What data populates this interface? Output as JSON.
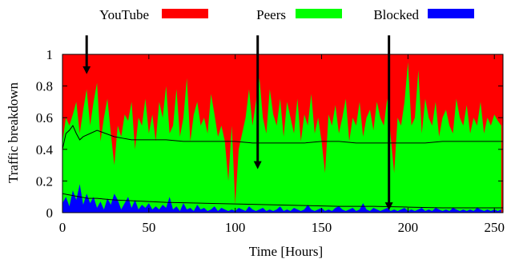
{
  "chart_data": {
    "type": "area",
    "stacked": true,
    "xlabel": "Time [Hours]",
    "ylabel": "Traffic breakdown",
    "xlim": [
      0,
      255
    ],
    "ylim": [
      0,
      1
    ],
    "x_ticks": [
      0,
      50,
      100,
      150,
      200,
      250
    ],
    "x_tick_labels": [
      "0",
      "50",
      "100",
      "150",
      "200",
      "250"
    ],
    "y_ticks": [
      0,
      0.2,
      0.4,
      0.6,
      0.8,
      1
    ],
    "y_tick_labels": [
      "0",
      "0.2",
      "0.4",
      "0.6",
      "0.8",
      "1"
    ],
    "grid": false,
    "legend_position": "top",
    "series": [
      {
        "name": "YouTube",
        "color": "#ff0000",
        "note": "remainder up to 1"
      },
      {
        "name": "Peers",
        "color": "#00ff00",
        "x": [
          0,
          2,
          4,
          6,
          8,
          10,
          12,
          14,
          16,
          18,
          20,
          22,
          24,
          26,
          28,
          30,
          32,
          34,
          36,
          38,
          40,
          42,
          44,
          46,
          48,
          50,
          52,
          54,
          56,
          58,
          60,
          62,
          64,
          66,
          68,
          70,
          72,
          74,
          76,
          78,
          80,
          82,
          84,
          86,
          88,
          90,
          92,
          94,
          96,
          98,
          100,
          102,
          104,
          106,
          108,
          110,
          112,
          114,
          116,
          118,
          120,
          122,
          124,
          126,
          128,
          130,
          132,
          134,
          136,
          138,
          140,
          142,
          144,
          146,
          148,
          150,
          152,
          154,
          156,
          158,
          160,
          162,
          164,
          166,
          168,
          170,
          172,
          174,
          176,
          178,
          180,
          182,
          184,
          186,
          188,
          190,
          192,
          194,
          196,
          198,
          200,
          202,
          204,
          206,
          208,
          210,
          212,
          214,
          216,
          218,
          220,
          222,
          224,
          226,
          228,
          230,
          232,
          234,
          236,
          238,
          240,
          242,
          244,
          246,
          248,
          250,
          252,
          254
        ],
        "values": [
          0.45,
          0.6,
          0.55,
          0.62,
          0.7,
          0.5,
          0.65,
          0.78,
          0.55,
          0.7,
          0.82,
          0.45,
          0.6,
          0.72,
          0.5,
          0.3,
          0.55,
          0.48,
          0.62,
          0.58,
          0.7,
          0.4,
          0.6,
          0.55,
          0.72,
          0.5,
          0.62,
          0.45,
          0.7,
          0.6,
          0.8,
          0.5,
          0.55,
          0.78,
          0.48,
          0.6,
          0.85,
          0.45,
          0.62,
          0.7,
          0.55,
          0.6,
          0.5,
          0.75,
          0.62,
          0.48,
          0.55,
          0.45,
          0.2,
          0.55,
          0.05,
          0.4,
          0.5,
          0.6,
          0.78,
          0.55,
          0.7,
          0.85,
          0.6,
          0.5,
          0.78,
          0.62,
          0.55,
          0.72,
          0.48,
          0.7,
          0.6,
          0.5,
          0.72,
          0.45,
          0.62,
          0.55,
          0.75,
          0.5,
          0.6,
          0.45,
          0.25,
          0.62,
          0.55,
          0.68,
          0.5,
          0.6,
          0.72,
          0.45,
          0.6,
          0.55,
          0.7,
          0.48,
          0.6,
          0.65,
          0.52,
          0.7,
          0.6,
          0.55,
          0.72,
          0.48,
          0.25,
          0.6,
          0.55,
          0.7,
          0.95,
          0.55,
          0.6,
          0.9,
          0.5,
          0.72,
          0.6,
          0.55,
          0.7,
          0.48,
          0.6,
          0.65,
          0.55,
          0.5,
          0.72,
          0.6,
          0.55,
          0.68,
          0.5,
          0.6,
          0.55,
          0.7,
          0.5,
          0.6,
          0.55,
          0.62,
          0.58,
          0.55
        ]
      },
      {
        "name": "Blocked",
        "color": "#0000ff",
        "x": [
          0,
          2,
          4,
          6,
          8,
          10,
          12,
          14,
          16,
          18,
          20,
          22,
          24,
          26,
          28,
          30,
          32,
          34,
          36,
          38,
          40,
          42,
          44,
          46,
          48,
          50,
          52,
          54,
          56,
          58,
          60,
          62,
          64,
          66,
          68,
          70,
          72,
          74,
          76,
          78,
          80,
          82,
          84,
          86,
          88,
          90,
          92,
          94,
          96,
          98,
          100,
          102,
          104,
          106,
          108,
          110,
          112,
          114,
          116,
          118,
          120,
          122,
          124,
          126,
          128,
          130,
          132,
          134,
          136,
          138,
          140,
          142,
          144,
          146,
          148,
          150,
          152,
          154,
          156,
          158,
          160,
          162,
          164,
          166,
          168,
          170,
          172,
          174,
          176,
          178,
          180,
          182,
          184,
          186,
          188,
          190,
          192,
          194,
          196,
          198,
          200,
          202,
          204,
          206,
          208,
          210,
          212,
          214,
          216,
          218,
          220,
          222,
          224,
          226,
          228,
          230,
          232,
          234,
          236,
          238,
          240,
          242,
          244,
          246,
          248,
          250,
          252,
          254
        ],
        "values": [
          0.06,
          0.1,
          0.04,
          0.14,
          0.08,
          0.18,
          0.05,
          0.12,
          0.06,
          0.1,
          0.03,
          0.07,
          0.02,
          0.09,
          0.05,
          0.12,
          0.08,
          0.02,
          0.06,
          0.1,
          0.03,
          0.08,
          0.02,
          0.05,
          0.03,
          0.06,
          0.02,
          0.04,
          0.02,
          0.05,
          0.03,
          0.1,
          0.02,
          0.04,
          0.01,
          0.06,
          0.02,
          0.03,
          0.01,
          0.05,
          0.02,
          0.03,
          0.01,
          0.02,
          0.04,
          0.01,
          0.03,
          0.02,
          0.01,
          0.02,
          0.01,
          0.03,
          0.02,
          0.01,
          0.04,
          0.02,
          0.01,
          0.02,
          0.03,
          0.01,
          0.02,
          0.01,
          0.02,
          0.04,
          0.01,
          0.02,
          0.01,
          0.03,
          0.02,
          0.01,
          0.02,
          0.05,
          0.02,
          0.01,
          0.02,
          0.03,
          0.01,
          0.02,
          0.01,
          0.03,
          0.04,
          0.02,
          0.01,
          0.02,
          0.03,
          0.01,
          0.02,
          0.06,
          0.02,
          0.01,
          0.03,
          0.02,
          0.01,
          0.02,
          0.03,
          0.01,
          0.02,
          0.01,
          0.02,
          0.03,
          0.01,
          0.02,
          0.01,
          0.02,
          0.03,
          0.01,
          0.02,
          0.01,
          0.03,
          0.02,
          0.01,
          0.02,
          0.01,
          0.03,
          0.02,
          0.01,
          0.02,
          0.01,
          0.02,
          0.01,
          0.03,
          0.02,
          0.01,
          0.02,
          0.01,
          0.02,
          0.01,
          0.02
        ]
      }
    ],
    "trend_lines": [
      {
        "of": "Peers cumulative average",
        "color": "#000000",
        "x": [
          0,
          2,
          4,
          6,
          8,
          10,
          12,
          16,
          20,
          25,
          30,
          35,
          40,
          50,
          60,
          70,
          80,
          90,
          100,
          110,
          120,
          130,
          140,
          150,
          160,
          170,
          180,
          190,
          200,
          210,
          220,
          230,
          240,
          250,
          255
        ],
        "values": [
          0.4,
          0.5,
          0.52,
          0.55,
          0.5,
          0.46,
          0.48,
          0.5,
          0.52,
          0.5,
          0.48,
          0.47,
          0.46,
          0.46,
          0.46,
          0.45,
          0.45,
          0.45,
          0.45,
          0.44,
          0.44,
          0.44,
          0.44,
          0.45,
          0.45,
          0.44,
          0.44,
          0.44,
          0.44,
          0.44,
          0.45,
          0.45,
          0.45,
          0.45,
          0.45
        ]
      },
      {
        "of": "Blocked cumulative average",
        "color": "#000000",
        "x": [
          0,
          5,
          10,
          15,
          20,
          30,
          40,
          50,
          60,
          80,
          100,
          120,
          140,
          160,
          180,
          200,
          220,
          240,
          255
        ],
        "values": [
          0.12,
          0.11,
          0.1,
          0.09,
          0.09,
          0.08,
          0.075,
          0.07,
          0.065,
          0.06,
          0.055,
          0.05,
          0.045,
          0.04,
          0.04,
          0.035,
          0.03,
          0.03,
          0.03
        ]
      }
    ],
    "annotations": [
      {
        "type": "arrow",
        "x": 14,
        "from_y": 1.12,
        "to_y": 0.9
      },
      {
        "type": "arrow",
        "x": 113,
        "from_y": 1.12,
        "to_y": 0.3
      },
      {
        "type": "arrow",
        "x": 189,
        "from_y": 1.12,
        "to_y": 0.04
      }
    ]
  }
}
